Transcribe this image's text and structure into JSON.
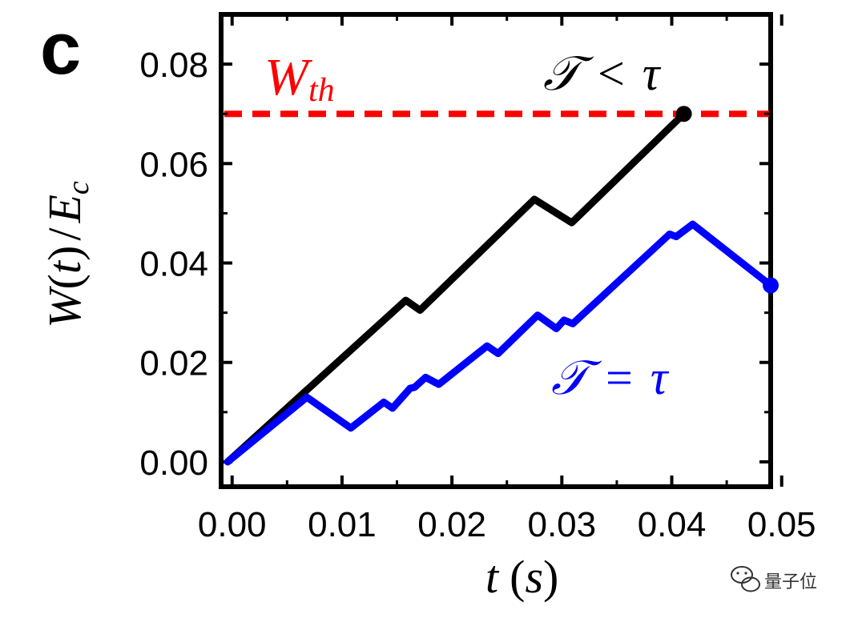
{
  "panel_label": "c",
  "watermark": {
    "text": "量子位",
    "icon": "wechat-icon"
  },
  "chart_data": {
    "type": "line",
    "xlim": [
      -0.001,
      0.049
    ],
    "ylim": [
      -0.005,
      0.09
    ],
    "x_ticks": [
      0.0,
      0.01,
      0.02,
      0.03,
      0.04,
      0.05
    ],
    "x_tick_labels": [
      "0.00",
      "0.01",
      "0.02",
      "0.03",
      "0.04",
      "0.05"
    ],
    "y_ticks": [
      0.0,
      0.02,
      0.04,
      0.06,
      0.08
    ],
    "y_tick_labels": [
      "0.00",
      "0.02",
      "0.04",
      "0.06",
      "0.08"
    ],
    "xlabel": {
      "var": "t",
      "unit": "s"
    },
    "ylabel": {
      "num": "W",
      "arg": "t",
      "den": "E",
      "den_sub": "c"
    },
    "threshold": {
      "y": 0.07,
      "label_main": "W",
      "label_sub": "th",
      "color": "#ff0000"
    },
    "series": [
      {
        "name": "𝒯 < τ",
        "color": "#000000",
        "points": [
          [
            -0.0004,
            0.0
          ],
          [
            0.0158,
            0.0325
          ],
          [
            0.0171,
            0.0305
          ],
          [
            0.0275,
            0.0528
          ],
          [
            0.0309,
            0.0481
          ],
          [
            0.0411,
            0.07
          ]
        ],
        "end_marker": true
      },
      {
        "name": "𝒯 = τ",
        "color": "#0000ff",
        "points": [
          [
            -0.0004,
            0.0
          ],
          [
            0.0068,
            0.013
          ],
          [
            0.0108,
            0.0068
          ],
          [
            0.0138,
            0.012
          ],
          [
            0.0146,
            0.0108
          ],
          [
            0.0162,
            0.0148
          ],
          [
            0.0166,
            0.015
          ],
          [
            0.0176,
            0.017
          ],
          [
            0.0188,
            0.0156
          ],
          [
            0.0232,
            0.0233
          ],
          [
            0.0242,
            0.0218
          ],
          [
            0.0278,
            0.0295
          ],
          [
            0.0295,
            0.0268
          ],
          [
            0.0302,
            0.0285
          ],
          [
            0.031,
            0.0278
          ],
          [
            0.0398,
            0.0458
          ],
          [
            0.0404,
            0.0453
          ],
          [
            0.0419,
            0.0478
          ],
          [
            0.049,
            0.0355
          ]
        ],
        "end_marker": true
      }
    ],
    "legend": [
      {
        "lhs": "𝒯",
        "op": "<",
        "rhs": "τ",
        "color": "#000000",
        "placement": "top-right"
      },
      {
        "lhs": "𝒯",
        "op": "=",
        "rhs": "τ",
        "color": "#0000ff",
        "placement": "lower-right"
      }
    ],
    "grid": false
  }
}
